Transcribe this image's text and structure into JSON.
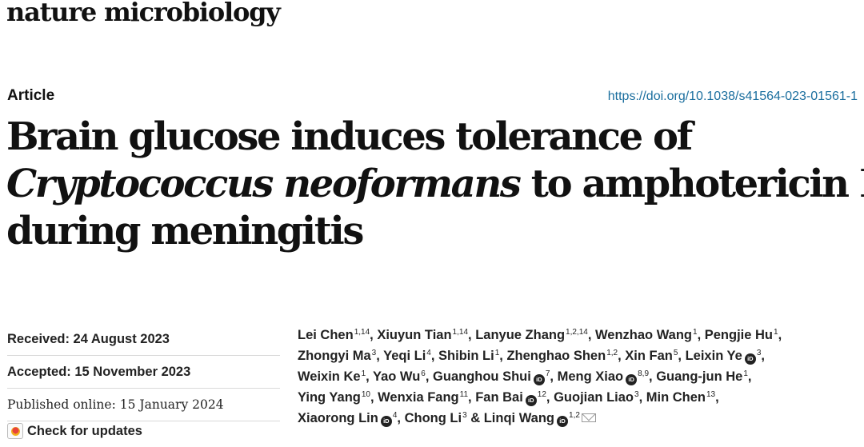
{
  "journal": {
    "name": "nature microbiology"
  },
  "article": {
    "type": "Article",
    "doi": "https://doi.org/10.1038/s41564-023-01561-1",
    "title": {
      "line1": "Brain glucose induces tolerance of",
      "line2_italic": "Cryptococcus neoformans",
      "line2_rest": " to amphotericin B",
      "line3": "during meningitis"
    }
  },
  "dates": {
    "received": "Received: 24 August 2023",
    "accepted": "Accepted: 15 November 2023",
    "published": "Published online: 15 January 2024"
  },
  "check_updates": {
    "label": "Check for updates",
    "icon": "check-for-updates-icon"
  },
  "authors": [
    {
      "name": "Lei Chen",
      "sup": "1,14",
      "sep": ", "
    },
    {
      "name": "Xiuyun Tian",
      "sup": "1,14",
      "sep": ", "
    },
    {
      "name": "Lanyue Zhang",
      "sup": "1,2,14",
      "sep": ", "
    },
    {
      "name": "Wenzhao Wang",
      "sup": "1",
      "sep": ", "
    },
    {
      "name": "Pengjie Hu",
      "sup": "1",
      "sep": ","
    },
    {
      "name": "Zhongyi Ma",
      "sup": "3",
      "sep": ", "
    },
    {
      "name": "Yeqi Li",
      "sup": "4",
      "sep": ", "
    },
    {
      "name": "Shibin Li",
      "sup": "1",
      "sep": ", "
    },
    {
      "name": "Zhenghao Shen",
      "sup": "1,2",
      "sep": ", "
    },
    {
      "name": "Xin Fan",
      "sup": "5",
      "sep": ", "
    },
    {
      "name": "Leixin Ye",
      "sup": "3",
      "sep": ",",
      "orcid": true
    },
    {
      "name": "Weixin Ke",
      "sup": "1",
      "sep": ", "
    },
    {
      "name": "Yao Wu",
      "sup": "6",
      "sep": ", "
    },
    {
      "name": "Guanghou Shui",
      "sup": "7",
      "sep": ", ",
      "orcid": true
    },
    {
      "name": "Meng Xiao",
      "sup": "8,9",
      "sep": ", ",
      "orcid": true
    },
    {
      "name": "Guang-jun He",
      "sup": "1",
      "sep": ","
    },
    {
      "name": "Ying Yang",
      "sup": "10",
      "sep": ", "
    },
    {
      "name": "Wenxia Fang",
      "sup": "11",
      "sep": ", "
    },
    {
      "name": "Fan Bai",
      "sup": "12",
      "sep": ", ",
      "orcid": true
    },
    {
      "name": "Guojian Liao",
      "sup": "3",
      "sep": ", "
    },
    {
      "name": "Min Chen",
      "sup": "13",
      "sep": ","
    },
    {
      "name": "Xiaorong Lin",
      "sup": "4",
      "sep": ", ",
      "orcid": true
    },
    {
      "name": "Chong Li",
      "sup": "3",
      "sep": " & "
    },
    {
      "name": "Linqi Wang",
      "sup": "1,2",
      "sep": "",
      "orcid": true,
      "mail": true
    }
  ],
  "author_rows": [
    [
      0,
      1,
      2,
      3,
      4
    ],
    [
      5,
      6,
      7,
      8,
      9,
      10
    ],
    [
      11,
      12,
      13,
      14,
      15
    ],
    [
      16,
      17,
      18,
      19,
      20
    ],
    [
      21,
      22,
      23
    ]
  ],
  "orcid_badge": "iD",
  "icons": {
    "orcid": "orcid-icon",
    "mail": "mail-icon"
  },
  "colors": {
    "doi_link": "#1a6e9e",
    "text": "#111111"
  }
}
